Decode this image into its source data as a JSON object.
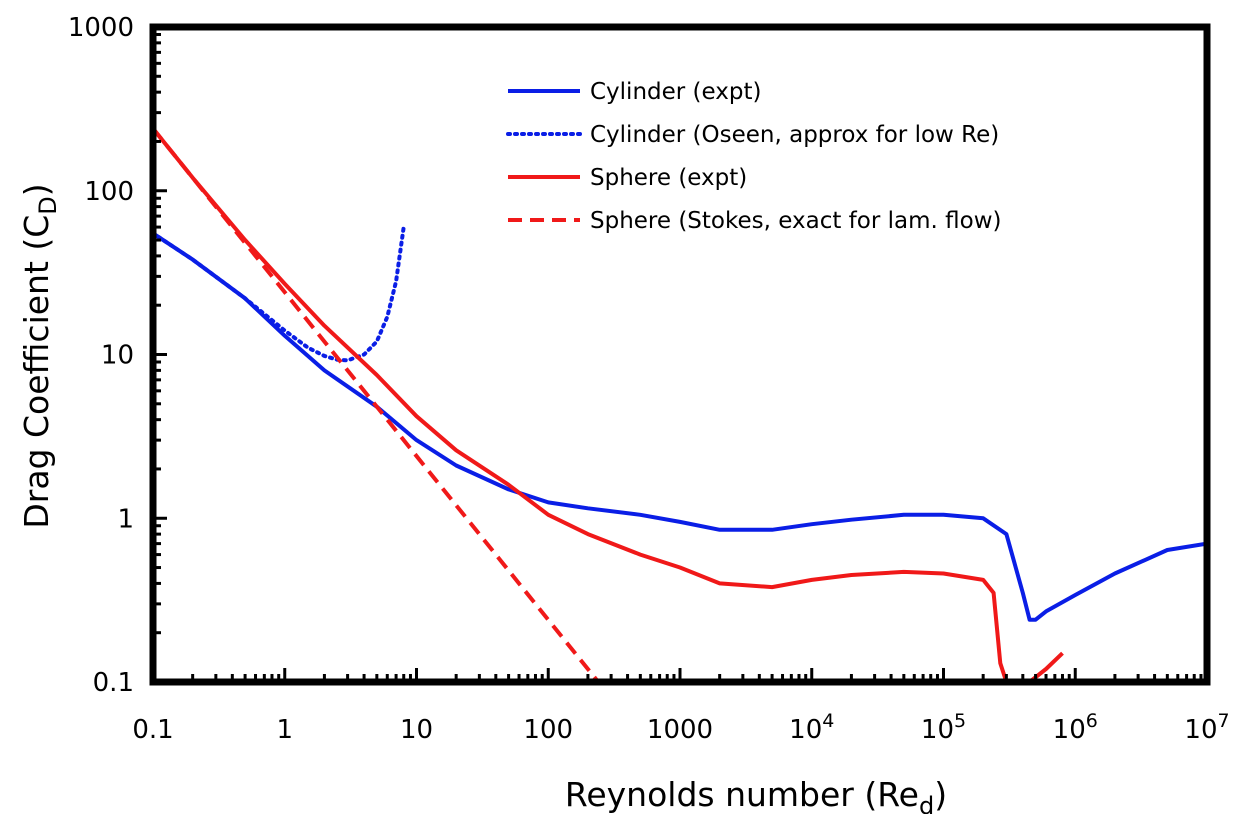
{
  "chart_data": {
    "type": "line",
    "xlabel": {
      "main": "Reynolds number (Re",
      "sub": "d",
      "close": ")"
    },
    "ylabel": {
      "main": "Drag Coefficient (C",
      "sub": "D",
      "close": ")"
    },
    "x_scale": "log",
    "y_scale": "log",
    "xlim": [
      0.1,
      10000000
    ],
    "ylim": [
      0.1,
      1000
    ],
    "grid": false,
    "legend_position": "top-right",
    "x_ticks": [
      {
        "value": 0.1,
        "base": "0.1",
        "exp": ""
      },
      {
        "value": 1,
        "base": "1",
        "exp": ""
      },
      {
        "value": 10,
        "base": "10",
        "exp": ""
      },
      {
        "value": 100,
        "base": "100",
        "exp": ""
      },
      {
        "value": 1000,
        "base": "1000",
        "exp": ""
      },
      {
        "value": 10000,
        "base": "10",
        "exp": "4"
      },
      {
        "value": 100000,
        "base": "10",
        "exp": "5"
      },
      {
        "value": 1000000,
        "base": "10",
        "exp": "6"
      },
      {
        "value": 10000000,
        "base": "10",
        "exp": "7"
      }
    ],
    "y_ticks": [
      {
        "value": 0.1,
        "label": "0.1"
      },
      {
        "value": 1,
        "label": "1"
      },
      {
        "value": 10,
        "label": "10"
      },
      {
        "value": 100,
        "label": "100"
      },
      {
        "value": 1000,
        "label": "1000"
      }
    ],
    "series": [
      {
        "name": "Cylinder (expt)",
        "color": "#0a1ee6",
        "style": "solid",
        "x": [
          0.1,
          0.2,
          0.5,
          1,
          2,
          5,
          10,
          20,
          50,
          100,
          200,
          500,
          1000,
          2000,
          5000,
          10000,
          20000,
          50000,
          100000,
          200000,
          300000,
          400000,
          450000,
          500000,
          600000,
          1000000,
          2000000,
          5000000,
          10000000
        ],
        "y": [
          55,
          38,
          22,
          13,
          8,
          4.8,
          3,
          2.1,
          1.5,
          1.25,
          1.15,
          1.05,
          0.95,
          0.85,
          0.85,
          0.92,
          0.98,
          1.05,
          1.05,
          1.0,
          0.8,
          0.35,
          0.24,
          0.24,
          0.27,
          0.34,
          0.46,
          0.64,
          0.7
        ]
      },
      {
        "name": "Cylinder (Oseen, approx for low Re)",
        "color": "#0a1ee6",
        "style": "dotted",
        "x": [
          0.1,
          0.2,
          0.5,
          1,
          1.5,
          2,
          2.5,
          3,
          4,
          5,
          6,
          7,
          8
        ],
        "y": [
          55,
          38,
          22,
          14,
          11,
          9.8,
          9.3,
          9.2,
          10,
          12,
          17,
          28,
          60
        ]
      },
      {
        "name": "Sphere (expt)",
        "color": "#f01919",
        "style": "solid",
        "x": [
          0.1,
          0.2,
          0.5,
          1,
          2,
          5,
          10,
          20,
          50,
          100,
          200,
          500,
          1000,
          2000,
          5000,
          10000,
          20000,
          50000,
          100000,
          200000,
          240000,
          270000,
          300000
        ],
        "y": [
          240,
          120,
          50,
          27,
          15,
          7.5,
          4.2,
          2.6,
          1.6,
          1.05,
          0.8,
          0.6,
          0.5,
          0.4,
          0.38,
          0.42,
          0.45,
          0.47,
          0.46,
          0.42,
          0.35,
          0.13,
          0.1
        ]
      },
      {
        "name": "",
        "color": "#f01919",
        "style": "solid",
        "x": [
          450000,
          600000,
          800000
        ],
        "y": [
          0.1,
          0.12,
          0.15
        ]
      },
      {
        "name": "Sphere (Stokes, exact for lam. flow)",
        "color": "#f01919",
        "style": "dashed",
        "x": [
          0.1,
          240
        ],
        "y": [
          240,
          0.1
        ]
      }
    ]
  }
}
